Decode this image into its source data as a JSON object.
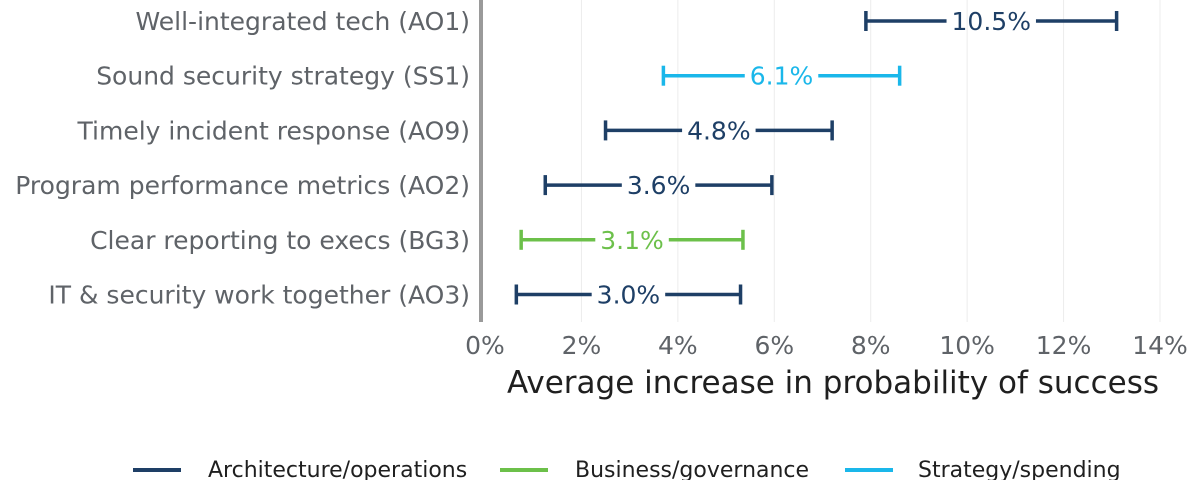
{
  "chart_data": {
    "type": "range",
    "xlabel": "Average increase in probability of success",
    "xlim": [
      0,
      14
    ],
    "x_ticks": [
      0,
      2,
      4,
      6,
      8,
      10,
      12,
      14
    ],
    "x_tick_labels": [
      "0%",
      "2%",
      "4%",
      "6%",
      "8%",
      "10%",
      "12%",
      "14%"
    ],
    "grid": "vertical",
    "legend_position": "bottom",
    "legend": [
      {
        "name": "Architecture/operations",
        "color": "#1e3f66"
      },
      {
        "name": "Business/governance",
        "color": "#6cc04a"
      },
      {
        "name": "Strategy/spending",
        "color": "#1ab7ea"
      }
    ],
    "categories": [
      {
        "label": "Well-integrated tech (AO1)",
        "group": "Architecture/operations",
        "low": 7.9,
        "high": 13.1,
        "value_label": "10.5%"
      },
      {
        "label": "Sound security strategy (SS1)",
        "group": "Strategy/spending",
        "low": 3.7,
        "high": 8.6,
        "value_label": "6.1%"
      },
      {
        "label": "Timely incident response (AO9)",
        "group": "Architecture/operations",
        "low": 2.5,
        "high": 7.2,
        "value_label": "4.8%"
      },
      {
        "label": "Program performance metrics (AO2)",
        "group": "Architecture/operations",
        "low": 1.25,
        "high": 5.95,
        "value_label": "3.6%"
      },
      {
        "label": "Clear reporting to execs (BG3)",
        "group": "Business/governance",
        "low": 0.75,
        "high": 5.35,
        "value_label": "3.1%"
      },
      {
        "label": "IT & security work together (AO3)",
        "group": "Architecture/operations",
        "low": 0.65,
        "high": 5.3,
        "value_label": "3.0%"
      }
    ]
  }
}
